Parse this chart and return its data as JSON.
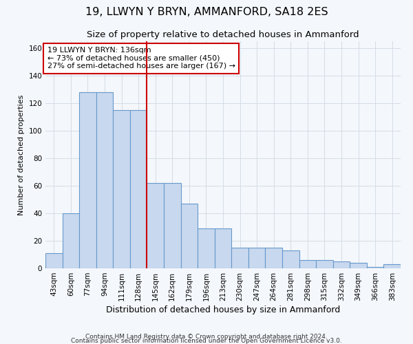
{
  "title": "19, LLWYN Y BRYN, AMMANFORD, SA18 2ES",
  "subtitle": "Size of property relative to detached houses in Ammanford",
  "xlabel": "Distribution of detached houses by size in Ammanford",
  "ylabel": "Number of detached properties",
  "categories": [
    "43sqm",
    "60sqm",
    "77sqm",
    "94sqm",
    "111sqm",
    "128sqm",
    "145sqm",
    "162sqm",
    "179sqm",
    "196sqm",
    "213sqm",
    "230sqm",
    "247sqm",
    "264sqm",
    "281sqm",
    "298sqm",
    "315sqm",
    "332sqm",
    "349sqm",
    "366sqm",
    "383sqm"
  ],
  "values": [
    11,
    40,
    128,
    128,
    115,
    115,
    62,
    62,
    47,
    29,
    29,
    15,
    15,
    15,
    13,
    6,
    6,
    5,
    4,
    1,
    3
  ],
  "bar_color": "#c8d8ee",
  "bar_edge_color": "#6699cc",
  "vline_x_index": 6,
  "vline_color": "#cc0000",
  "annotation_text_line1": "19 LLWYN Y BRYN: 136sqm",
  "annotation_text_line2": "← 73% of detached houses are smaller (450)",
  "annotation_text_line3": "27% of semi-detached houses are larger (167) →",
  "annotation_box_color": "#ffffff",
  "annotation_box_edge": "#cc0000",
  "ylim": [
    0,
    165
  ],
  "yticks": [
    0,
    20,
    40,
    60,
    80,
    100,
    120,
    140,
    160
  ],
  "footer1": "Contains HM Land Registry data © Crown copyright and database right 2024.",
  "footer2": "Contains public sector information licensed under the Open Government Licence v3.0.",
  "title_fontsize": 11.5,
  "subtitle_fontsize": 9.5,
  "xlabel_fontsize": 9,
  "ylabel_fontsize": 8,
  "tick_fontsize": 7.5,
  "annotation_fontsize": 8,
  "footer_fontsize": 6.5,
  "bg_color": "#f4f7fb",
  "grid_color": "#d0d8e4"
}
